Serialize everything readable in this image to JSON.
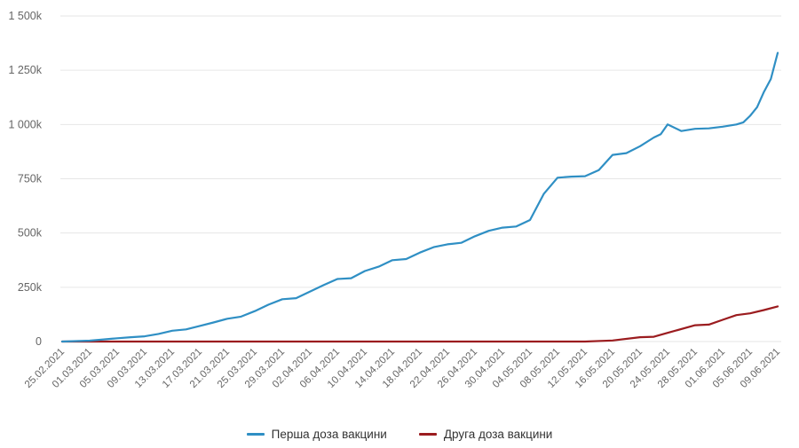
{
  "chart_data": {
    "type": "line",
    "title": "",
    "xlabel": "",
    "ylabel": "",
    "ylim": [
      0,
      1500000
    ],
    "grid": true,
    "legend_position": "bottom",
    "yticks": [
      {
        "value": 0,
        "label": "0"
      },
      {
        "value": 250000,
        "label": "250k"
      },
      {
        "value": 500000,
        "label": "500k"
      },
      {
        "value": 750000,
        "label": "750k"
      },
      {
        "value": 1000000,
        "label": "1 000k"
      },
      {
        "value": 1250000,
        "label": "1 250k"
      },
      {
        "value": 1500000,
        "label": "1 500k"
      }
    ],
    "categories": [
      "25.02.2021",
      "01.03.2021",
      "05.03.2021",
      "09.03.2021",
      "13.03.2021",
      "17.03.2021",
      "21.03.2021",
      "25.03.2021",
      "29.03.2021",
      "02.04.2021",
      "06.04.2021",
      "10.04.2021",
      "14.04.2021",
      "18.04.2021",
      "22.04.2021",
      "26.04.2021",
      "30.04.2021",
      "04.05.2021",
      "08.05.2021",
      "12.05.2021",
      "16.05.2021",
      "20.05.2021",
      "24.05.2021",
      "28.05.2021",
      "01.06.2021",
      "05.06.2021",
      "09.06.2021"
    ],
    "series": [
      {
        "name": "Перша доза вакцини",
        "color": "#2f8fc4",
        "day_offsets": [
          0,
          4,
          8,
          10,
          12,
          14,
          16,
          18,
          20,
          22,
          24,
          26,
          28,
          30,
          32,
          34,
          36,
          38,
          40,
          42,
          44,
          46,
          48,
          50,
          52,
          54,
          56,
          58,
          60,
          62,
          64,
          66,
          68,
          70,
          72,
          74,
          76,
          78,
          80,
          82,
          84,
          86,
          87,
          88,
          90,
          92,
          94,
          96,
          98,
          99,
          100,
          101,
          102,
          103,
          104
        ],
        "values": [
          0,
          4000,
          15000,
          20000,
          24000,
          35000,
          50000,
          56000,
          72000,
          88000,
          105000,
          115000,
          140000,
          170000,
          195000,
          200000,
          230000,
          260000,
          288000,
          292000,
          325000,
          345000,
          375000,
          380000,
          410000,
          435000,
          448000,
          455000,
          485000,
          510000,
          525000,
          530000,
          560000,
          680000,
          755000,
          760000,
          762000,
          790000,
          860000,
          868000,
          900000,
          940000,
          955000,
          1000000,
          970000,
          980000,
          982000,
          990000,
          1000000,
          1010000,
          1040000,
          1080000,
          1150000,
          1210000,
          1330000
        ]
      },
      {
        "name": "Друга доза вакцини",
        "color": "#9b1c1f",
        "day_offsets": [
          0,
          76,
          80,
          84,
          86,
          88,
          92,
          94,
          96,
          98,
          100,
          102,
          104
        ],
        "values": [
          0,
          0,
          5000,
          20000,
          22000,
          40000,
          75000,
          78000,
          100000,
          122000,
          130000,
          145000,
          162000
        ]
      }
    ]
  },
  "legend": {
    "items": [
      {
        "label": "Перша доза вакцини",
        "color": "#2f8fc4"
      },
      {
        "label": "Друга доза вакцини",
        "color": "#9b1c1f"
      }
    ]
  }
}
